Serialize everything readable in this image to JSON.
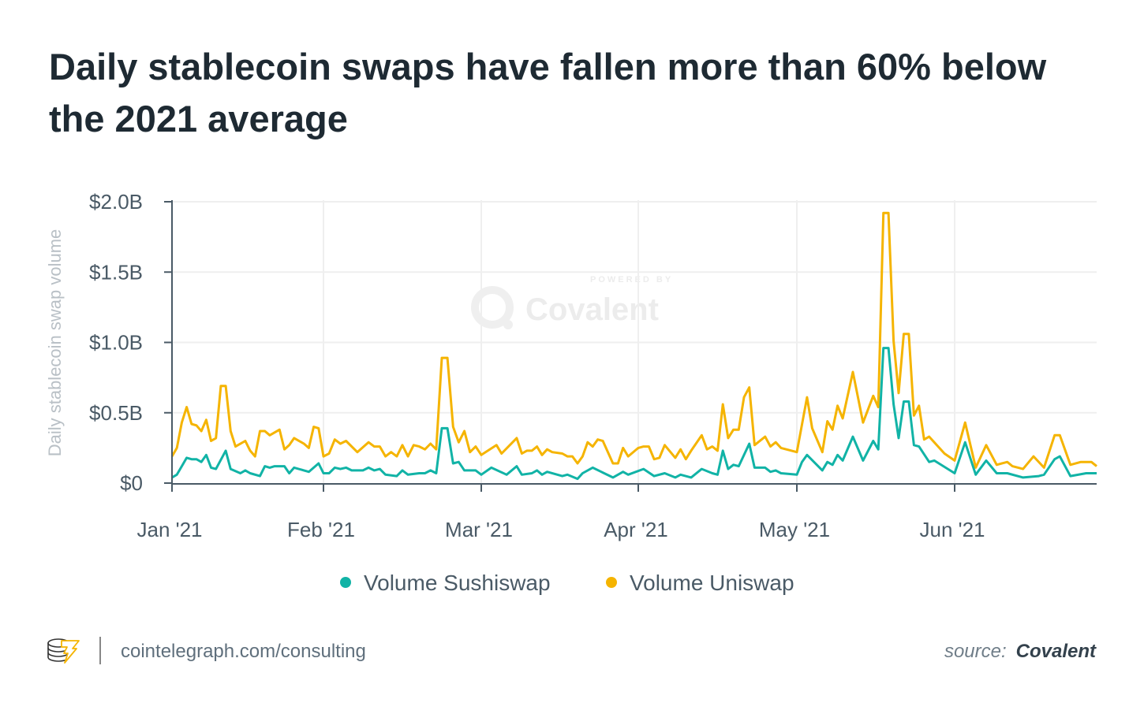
{
  "title": "Daily stablecoin swaps have fallen more than 60% below the 2021 average",
  "watermark": {
    "powered_by": "POWERED BY",
    "brand": "Covalent"
  },
  "footer": {
    "url": "cointelegraph.com/consulting",
    "source_label": "source:",
    "source_name": "Covalent"
  },
  "colors": {
    "sushiswap": "#11b3a6",
    "uniswap": "#f5b400",
    "axis": "#4a5a66",
    "grid": "#efefef",
    "title": "#1e2a33"
  },
  "chart_data": {
    "type": "line",
    "title": "Daily stablecoin swaps have fallen more than 60% below the 2021 average",
    "ylabel": "Daily stablecoin swap volume",
    "xlabel": "",
    "yunit": "USD billions",
    "ylim": [
      0,
      2.0
    ],
    "yticks": [
      {
        "v": 0,
        "label": "$0"
      },
      {
        "v": 0.5,
        "label": "$0.5B"
      },
      {
        "v": 1.0,
        "label": "$1.0B"
      },
      {
        "v": 1.5,
        "label": "$1.5B"
      },
      {
        "v": 2.0,
        "label": "$2.0B"
      }
    ],
    "xlim": [
      "2021-01-01",
      "2021-06-28"
    ],
    "xticks": [
      {
        "d": "2021-01-01",
        "label": "Jan '21"
      },
      {
        "d": "2021-02-01",
        "label": "Feb '21"
      },
      {
        "d": "2021-03-01",
        "label": "Mar '21"
      },
      {
        "d": "2021-04-01",
        "label": "Apr '21"
      },
      {
        "d": "2021-05-01",
        "label": "May '21"
      },
      {
        "d": "2021-06-01",
        "label": "Jun '21"
      }
    ],
    "grid": true,
    "legend_position": "bottom",
    "series": [
      {
        "name": "Volume Sushiswap",
        "color": "#11b3a6",
        "points": [
          [
            "2021-01-01",
            0.04
          ],
          [
            "2021-01-02",
            0.06
          ],
          [
            "2021-01-03",
            0.12
          ],
          [
            "2021-01-04",
            0.18
          ],
          [
            "2021-01-05",
            0.17
          ],
          [
            "2021-01-06",
            0.17
          ],
          [
            "2021-01-07",
            0.15
          ],
          [
            "2021-01-08",
            0.2
          ],
          [
            "2021-01-09",
            0.11
          ],
          [
            "2021-01-10",
            0.1
          ],
          [
            "2021-01-12",
            0.23
          ],
          [
            "2021-01-13",
            0.1
          ],
          [
            "2021-01-15",
            0.07
          ],
          [
            "2021-01-16",
            0.09
          ],
          [
            "2021-01-17",
            0.07
          ],
          [
            "2021-01-19",
            0.05
          ],
          [
            "2021-01-20",
            0.12
          ],
          [
            "2021-01-21",
            0.11
          ],
          [
            "2021-01-22",
            0.12
          ],
          [
            "2021-01-24",
            0.12
          ],
          [
            "2021-01-25",
            0.07
          ],
          [
            "2021-01-26",
            0.11
          ],
          [
            "2021-01-28",
            0.09
          ],
          [
            "2021-01-29",
            0.08
          ],
          [
            "2021-01-31",
            0.14
          ],
          [
            "2021-02-01",
            0.07
          ],
          [
            "2021-02-02",
            0.07
          ],
          [
            "2021-02-03",
            0.11
          ],
          [
            "2021-02-04",
            0.1
          ],
          [
            "2021-02-05",
            0.11
          ],
          [
            "2021-02-06",
            0.09
          ],
          [
            "2021-02-08",
            0.09
          ],
          [
            "2021-02-09",
            0.11
          ],
          [
            "2021-02-10",
            0.09
          ],
          [
            "2021-02-11",
            0.1
          ],
          [
            "2021-02-12",
            0.06
          ],
          [
            "2021-02-14",
            0.05
          ],
          [
            "2021-02-15",
            0.09
          ],
          [
            "2021-02-16",
            0.06
          ],
          [
            "2021-02-18",
            0.07
          ],
          [
            "2021-02-19",
            0.07
          ],
          [
            "2021-02-20",
            0.09
          ],
          [
            "2021-02-21",
            0.07
          ],
          [
            "2021-02-22",
            0.39
          ],
          [
            "2021-02-23",
            0.39
          ],
          [
            "2021-02-24",
            0.14
          ],
          [
            "2021-02-25",
            0.15
          ],
          [
            "2021-02-26",
            0.09
          ],
          [
            "2021-02-28",
            0.09
          ],
          [
            "2021-03-01",
            0.06
          ],
          [
            "2021-03-03",
            0.11
          ],
          [
            "2021-03-06",
            0.06
          ],
          [
            "2021-03-08",
            0.12
          ],
          [
            "2021-03-09",
            0.06
          ],
          [
            "2021-03-11",
            0.07
          ],
          [
            "2021-03-12",
            0.09
          ],
          [
            "2021-03-13",
            0.06
          ],
          [
            "2021-03-14",
            0.08
          ],
          [
            "2021-03-17",
            0.05
          ],
          [
            "2021-03-18",
            0.06
          ],
          [
            "2021-03-20",
            0.03
          ],
          [
            "2021-03-21",
            0.07
          ],
          [
            "2021-03-23",
            0.11
          ],
          [
            "2021-03-27",
            0.04
          ],
          [
            "2021-03-29",
            0.08
          ],
          [
            "2021-03-30",
            0.06
          ],
          [
            "2021-04-02",
            0.1
          ],
          [
            "2021-04-04",
            0.05
          ],
          [
            "2021-04-06",
            0.07
          ],
          [
            "2021-04-08",
            0.04
          ],
          [
            "2021-04-09",
            0.06
          ],
          [
            "2021-04-11",
            0.04
          ],
          [
            "2021-04-13",
            0.1
          ],
          [
            "2021-04-15",
            0.07
          ],
          [
            "2021-04-16",
            0.06
          ],
          [
            "2021-04-17",
            0.23
          ],
          [
            "2021-04-18",
            0.1
          ],
          [
            "2021-04-19",
            0.13
          ],
          [
            "2021-04-20",
            0.12
          ],
          [
            "2021-04-22",
            0.28
          ],
          [
            "2021-04-23",
            0.11
          ],
          [
            "2021-04-25",
            0.11
          ],
          [
            "2021-04-26",
            0.08
          ],
          [
            "2021-04-27",
            0.09
          ],
          [
            "2021-04-28",
            0.07
          ],
          [
            "2021-05-01",
            0.06
          ],
          [
            "2021-05-02",
            0.15
          ],
          [
            "2021-05-03",
            0.2
          ],
          [
            "2021-05-06",
            0.09
          ],
          [
            "2021-05-07",
            0.15
          ],
          [
            "2021-05-08",
            0.13
          ],
          [
            "2021-05-09",
            0.2
          ],
          [
            "2021-05-10",
            0.16
          ],
          [
            "2021-05-12",
            0.33
          ],
          [
            "2021-05-14",
            0.16
          ],
          [
            "2021-05-16",
            0.3
          ],
          [
            "2021-05-17",
            0.24
          ],
          [
            "2021-05-18",
            0.96
          ],
          [
            "2021-05-19",
            0.96
          ],
          [
            "2021-05-20",
            0.56
          ],
          [
            "2021-05-21",
            0.32
          ],
          [
            "2021-05-22",
            0.58
          ],
          [
            "2021-05-23",
            0.58
          ],
          [
            "2021-05-24",
            0.27
          ],
          [
            "2021-05-25",
            0.26
          ],
          [
            "2021-05-27",
            0.15
          ],
          [
            "2021-05-28",
            0.16
          ],
          [
            "2021-06-01",
            0.07
          ],
          [
            "2021-06-03",
            0.29
          ],
          [
            "2021-06-05",
            0.06
          ],
          [
            "2021-06-07",
            0.16
          ],
          [
            "2021-06-09",
            0.07
          ],
          [
            "2021-06-11",
            0.07
          ],
          [
            "2021-06-14",
            0.04
          ],
          [
            "2021-06-17",
            0.05
          ],
          [
            "2021-06-18",
            0.06
          ],
          [
            "2021-06-20",
            0.17
          ],
          [
            "2021-06-21",
            0.19
          ],
          [
            "2021-06-23",
            0.05
          ],
          [
            "2021-06-26",
            0.07
          ],
          [
            "2021-06-28",
            0.07
          ]
        ]
      },
      {
        "name": "Volume Uniswap",
        "color": "#f5b400",
        "points": [
          [
            "2021-01-01",
            0.19
          ],
          [
            "2021-01-02",
            0.25
          ],
          [
            "2021-01-03",
            0.43
          ],
          [
            "2021-01-04",
            0.54
          ],
          [
            "2021-01-05",
            0.42
          ],
          [
            "2021-01-06",
            0.41
          ],
          [
            "2021-01-07",
            0.37
          ],
          [
            "2021-01-08",
            0.45
          ],
          [
            "2021-01-09",
            0.3
          ],
          [
            "2021-01-10",
            0.32
          ],
          [
            "2021-01-11",
            0.69
          ],
          [
            "2021-01-12",
            0.69
          ],
          [
            "2021-01-13",
            0.37
          ],
          [
            "2021-01-14",
            0.26
          ],
          [
            "2021-01-16",
            0.3
          ],
          [
            "2021-01-17",
            0.23
          ],
          [
            "2021-01-18",
            0.19
          ],
          [
            "2021-01-19",
            0.37
          ],
          [
            "2021-01-20",
            0.37
          ],
          [
            "2021-01-21",
            0.34
          ],
          [
            "2021-01-23",
            0.38
          ],
          [
            "2021-01-24",
            0.24
          ],
          [
            "2021-01-25",
            0.27
          ],
          [
            "2021-01-26",
            0.32
          ],
          [
            "2021-01-28",
            0.28
          ],
          [
            "2021-01-29",
            0.25
          ],
          [
            "2021-01-30",
            0.4
          ],
          [
            "2021-01-31",
            0.39
          ],
          [
            "2021-02-01",
            0.19
          ],
          [
            "2021-02-02",
            0.21
          ],
          [
            "2021-02-03",
            0.31
          ],
          [
            "2021-02-04",
            0.28
          ],
          [
            "2021-02-05",
            0.3
          ],
          [
            "2021-02-07",
            0.22
          ],
          [
            "2021-02-09",
            0.29
          ],
          [
            "2021-02-10",
            0.26
          ],
          [
            "2021-02-11",
            0.26
          ],
          [
            "2021-02-12",
            0.19
          ],
          [
            "2021-02-13",
            0.22
          ],
          [
            "2021-02-14",
            0.19
          ],
          [
            "2021-02-15",
            0.27
          ],
          [
            "2021-02-16",
            0.19
          ],
          [
            "2021-02-17",
            0.27
          ],
          [
            "2021-02-18",
            0.26
          ],
          [
            "2021-02-19",
            0.24
          ],
          [
            "2021-02-20",
            0.28
          ],
          [
            "2021-02-21",
            0.24
          ],
          [
            "2021-02-22",
            0.89
          ],
          [
            "2021-02-23",
            0.89
          ],
          [
            "2021-02-24",
            0.4
          ],
          [
            "2021-02-25",
            0.29
          ],
          [
            "2021-02-26",
            0.37
          ],
          [
            "2021-02-27",
            0.22
          ],
          [
            "2021-02-28",
            0.26
          ],
          [
            "2021-03-01",
            0.2
          ],
          [
            "2021-03-04",
            0.27
          ],
          [
            "2021-03-05",
            0.21
          ],
          [
            "2021-03-08",
            0.32
          ],
          [
            "2021-03-09",
            0.21
          ],
          [
            "2021-03-10",
            0.23
          ],
          [
            "2021-03-11",
            0.23
          ],
          [
            "2021-03-12",
            0.26
          ],
          [
            "2021-03-13",
            0.2
          ],
          [
            "2021-03-14",
            0.24
          ],
          [
            "2021-03-15",
            0.22
          ],
          [
            "2021-03-17",
            0.21
          ],
          [
            "2021-03-18",
            0.19
          ],
          [
            "2021-03-19",
            0.19
          ],
          [
            "2021-03-20",
            0.14
          ],
          [
            "2021-03-21",
            0.19
          ],
          [
            "2021-03-22",
            0.29
          ],
          [
            "2021-03-23",
            0.26
          ],
          [
            "2021-03-24",
            0.31
          ],
          [
            "2021-03-25",
            0.3
          ],
          [
            "2021-03-27",
            0.14
          ],
          [
            "2021-03-28",
            0.14
          ],
          [
            "2021-03-29",
            0.25
          ],
          [
            "2021-03-30",
            0.19
          ],
          [
            "2021-04-01",
            0.25
          ],
          [
            "2021-04-02",
            0.26
          ],
          [
            "2021-04-03",
            0.26
          ],
          [
            "2021-04-04",
            0.17
          ],
          [
            "2021-04-05",
            0.18
          ],
          [
            "2021-04-06",
            0.27
          ],
          [
            "2021-04-08",
            0.18
          ],
          [
            "2021-04-09",
            0.24
          ],
          [
            "2021-04-10",
            0.17
          ],
          [
            "2021-04-11",
            0.23
          ],
          [
            "2021-04-13",
            0.34
          ],
          [
            "2021-04-14",
            0.24
          ],
          [
            "2021-04-15",
            0.26
          ],
          [
            "2021-04-16",
            0.23
          ],
          [
            "2021-04-17",
            0.56
          ],
          [
            "2021-04-18",
            0.32
          ],
          [
            "2021-04-19",
            0.38
          ],
          [
            "2021-04-20",
            0.38
          ],
          [
            "2021-04-21",
            0.61
          ],
          [
            "2021-04-22",
            0.68
          ],
          [
            "2021-04-23",
            0.27
          ],
          [
            "2021-04-25",
            0.33
          ],
          [
            "2021-04-26",
            0.26
          ],
          [
            "2021-04-27",
            0.29
          ],
          [
            "2021-04-28",
            0.25
          ],
          [
            "2021-05-01",
            0.22
          ],
          [
            "2021-05-03",
            0.61
          ],
          [
            "2021-05-04",
            0.39
          ],
          [
            "2021-05-06",
            0.22
          ],
          [
            "2021-05-07",
            0.44
          ],
          [
            "2021-05-08",
            0.38
          ],
          [
            "2021-05-09",
            0.55
          ],
          [
            "2021-05-10",
            0.46
          ],
          [
            "2021-05-12",
            0.79
          ],
          [
            "2021-05-14",
            0.43
          ],
          [
            "2021-05-16",
            0.62
          ],
          [
            "2021-05-17",
            0.54
          ],
          [
            "2021-05-18",
            1.92
          ],
          [
            "2021-05-19",
            1.92
          ],
          [
            "2021-05-20",
            1.01
          ],
          [
            "2021-05-21",
            0.64
          ],
          [
            "2021-05-22",
            1.06
          ],
          [
            "2021-05-23",
            1.06
          ],
          [
            "2021-05-24",
            0.48
          ],
          [
            "2021-05-25",
            0.55
          ],
          [
            "2021-05-26",
            0.31
          ],
          [
            "2021-05-27",
            0.33
          ],
          [
            "2021-05-30",
            0.21
          ],
          [
            "2021-06-01",
            0.16
          ],
          [
            "2021-06-03",
            0.43
          ],
          [
            "2021-06-05",
            0.11
          ],
          [
            "2021-06-07",
            0.27
          ],
          [
            "2021-06-09",
            0.13
          ],
          [
            "2021-06-11",
            0.15
          ],
          [
            "2021-06-12",
            0.12
          ],
          [
            "2021-06-14",
            0.1
          ],
          [
            "2021-06-16",
            0.19
          ],
          [
            "2021-06-18",
            0.11
          ],
          [
            "2021-06-20",
            0.34
          ],
          [
            "2021-06-21",
            0.34
          ],
          [
            "2021-06-23",
            0.13
          ],
          [
            "2021-06-25",
            0.15
          ],
          [
            "2021-06-27",
            0.15
          ],
          [
            "2021-06-28",
            0.12
          ]
        ]
      }
    ]
  }
}
